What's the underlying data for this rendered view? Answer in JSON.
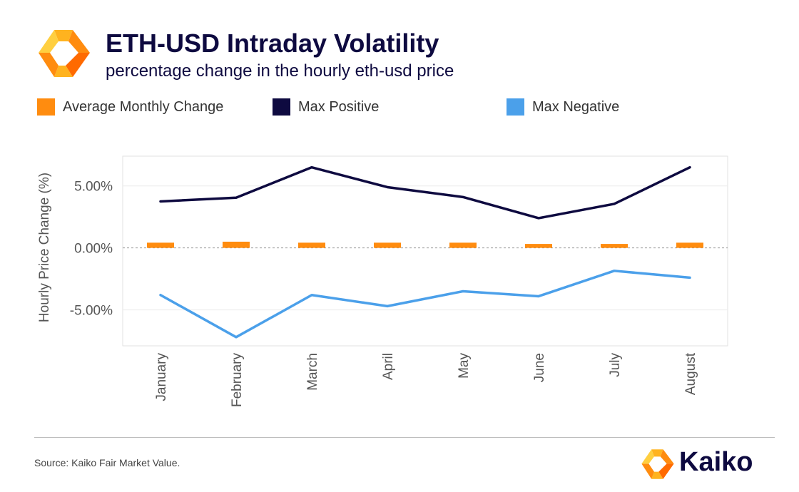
{
  "header": {
    "title": "ETH-USD Intraday Volatility",
    "subtitle": "percentage change in the hourly eth-usd price"
  },
  "legend": [
    {
      "label": "Average Monthly Change",
      "color": "#ff8c0f"
    },
    {
      "label": "Max Positive",
      "color": "#0e0a40"
    },
    {
      "label": "Max Negative",
      "color": "#4ba0ea"
    }
  ],
  "chart_data": {
    "type": "line",
    "title": "ETH-USD Intraday Volatility",
    "subtitle": "percentage change in the hourly eth-usd price",
    "xlabel": "",
    "ylabel": "Hourly Price Change (%)",
    "categories": [
      "January",
      "February",
      "March",
      "April",
      "May",
      "June",
      "July",
      "August"
    ],
    "yticks": [
      5,
      0,
      -5
    ],
    "ytick_labels": [
      "5.00%",
      "0.00%",
      "-5.00%"
    ],
    "ylim": [
      -7.9,
      7.4
    ],
    "grid": true,
    "legend_position": "top",
    "series": [
      {
        "name": "Average Monthly Change",
        "type": "bar",
        "color": "#ff8c0f",
        "values": [
          0.42,
          0.5,
          0.42,
          0.42,
          0.42,
          0.32,
          0.32,
          0.42
        ]
      },
      {
        "name": "Max Positive",
        "type": "line",
        "color": "#0e0a40",
        "values": [
          3.75,
          4.05,
          6.5,
          4.9,
          4.1,
          2.4,
          3.55,
          6.5
        ]
      },
      {
        "name": "Max Negative",
        "type": "line",
        "color": "#4ba0ea",
        "values": [
          -3.8,
          -7.2,
          -3.8,
          -4.7,
          -3.5,
          -3.9,
          -1.85,
          -2.4
        ]
      }
    ]
  },
  "footer": {
    "source": "Source: Kaiko Fair Market Value.",
    "brand": "Kaiko"
  },
  "icons": {
    "header_logo": "kaiko-logo-icon",
    "brand_logo": "kaiko-logo-icon"
  }
}
